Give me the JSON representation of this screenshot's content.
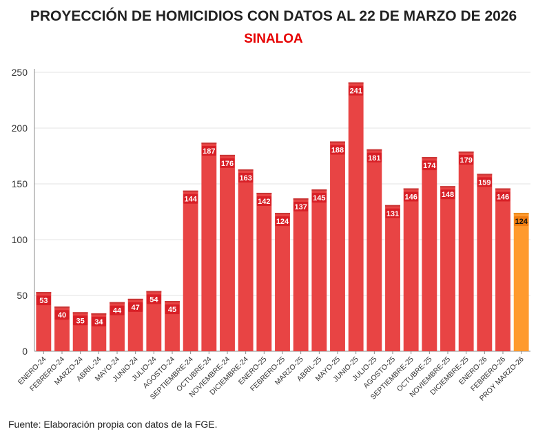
{
  "title": "PROYECCIÓN DE HOMICIDIOS CON DATOS AL 22 DE MARZO DE 2026",
  "subtitle": "SINALOA",
  "footer": "Fuente: Elaboración propia con datos de la FGE.",
  "colors": {
    "bar": "#e84444",
    "projection": "#ff9a2e",
    "subtitle": "#e60000",
    "label_bg": "#d81f26",
    "projection_label_bg": "#f07d10"
  },
  "chart_data": {
    "type": "bar",
    "title": "PROYECCIÓN DE HOMICIDIOS CON DATOS AL 22 DE MARZO DE 2026",
    "subtitle": "SINALOA",
    "xlabel": "",
    "ylabel": "",
    "ylim": [
      0,
      250
    ],
    "yticks": [
      0,
      50,
      100,
      150,
      200,
      250
    ],
    "grid": true,
    "legend": "none",
    "categories": [
      "ENERO-24",
      "FEBRERO-24",
      "MARZO-24",
      "ABRIL-24",
      "MAYO-24",
      "JUNIO-24",
      "JULIO-24",
      "AGOSTO-24",
      "SEPTIEMBRE-24",
      "OCTUBRE-24",
      "NOVIEMBRE-24",
      "DICIEMBRE-24",
      "ENERO-25",
      "FEBRERO-25",
      "MARZO-25",
      "ABRIL-25",
      "MAYO-25",
      "JUNIO-25",
      "JULIO-25",
      "AGOSTO-25",
      "SEPTIEMBRE-25",
      "OCTUBRE-25",
      "NOVIEMBRE-25",
      "DICIEMBRE-25",
      "ENERO-26",
      "FEBRERO-26",
      "PROY MARZO-26"
    ],
    "values": [
      53,
      40,
      35,
      34,
      44,
      47,
      54,
      45,
      144,
      187,
      176,
      163,
      142,
      124,
      137,
      145,
      188,
      241,
      181,
      131,
      146,
      174,
      148,
      179,
      159,
      146,
      124
    ],
    "projection_index": 26
  }
}
